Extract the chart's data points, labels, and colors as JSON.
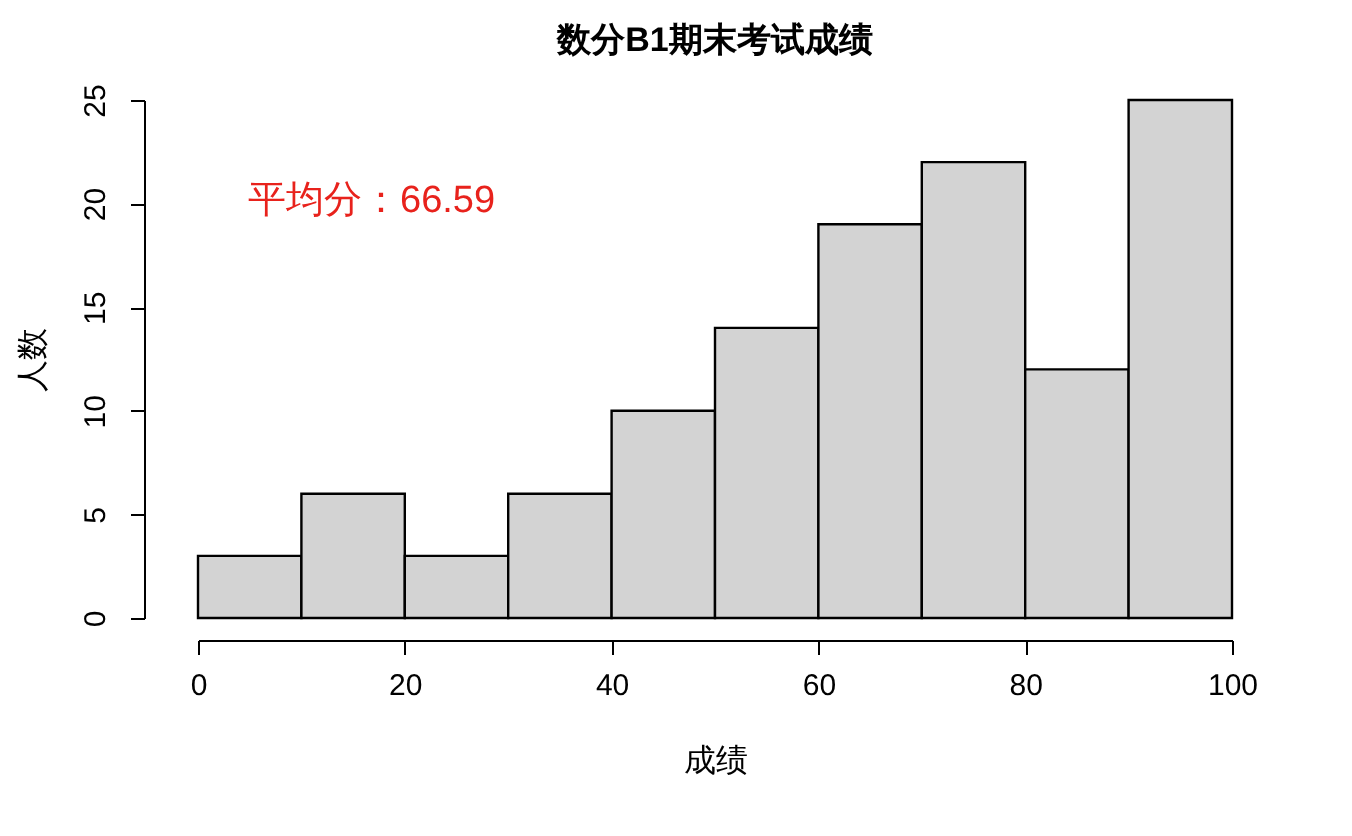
{
  "chart_data": {
    "type": "histogram",
    "title": "数分B1期末考试成绩",
    "xlabel": "成绩",
    "ylabel": "人数",
    "bins": [
      0,
      10,
      20,
      30,
      40,
      50,
      60,
      70,
      80,
      90,
      100
    ],
    "values": [
      3,
      6,
      3,
      6,
      10,
      14,
      19,
      22,
      12,
      25
    ],
    "color": "#d3d3d3",
    "xlim": [
      0,
      100
    ],
    "ylim": [
      0,
      25
    ],
    "xticks": [
      0,
      20,
      40,
      60,
      80,
      100
    ],
    "yticks": [
      0,
      5,
      10,
      15,
      20,
      25
    ],
    "grid": false,
    "annotations": [
      "平均分：66.59"
    ]
  }
}
